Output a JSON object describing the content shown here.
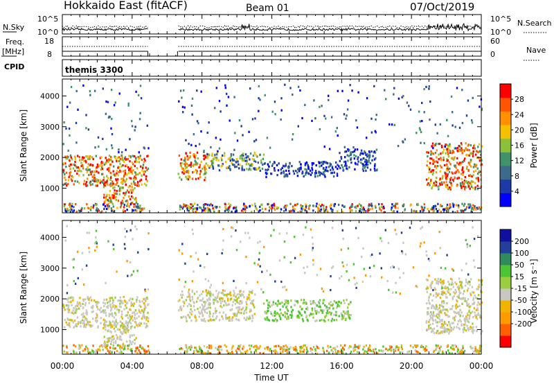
{
  "header": {
    "station": "Hokkaido East (fitACF)",
    "beam": "Beam 01",
    "date": "07/Oct/2019"
  },
  "noise_panel": {
    "left_label": "N.Sky",
    "right_label": "N.Search",
    "left_ticks": [
      "10^5",
      "10^0"
    ],
    "right_ticks": [
      "10^5",
      "10^0"
    ]
  },
  "freq_panel": {
    "left_label_1": "Freq.",
    "left_label_2": "[MHz]",
    "left_ticks": [
      "18",
      "8"
    ],
    "right_label": "Nave",
    "right_ticks": [
      "60",
      "0"
    ]
  },
  "cpid_panel": {
    "label": "CPID",
    "program": "themis 3300"
  },
  "chart_data": [
    {
      "type": "heatmap",
      "name": "power-panel",
      "ylabel": "Slant Range [km]",
      "yticks": [
        "4000",
        "3000",
        "2000",
        "1000"
      ],
      "ylim": [
        200,
        4550
      ],
      "xlim_hours": [
        0,
        24
      ],
      "colorbar": {
        "label": "Power [dB]",
        "range": [
          0,
          32
        ],
        "ticks": [
          "28",
          "24",
          "20",
          "16",
          "12",
          "8",
          "4"
        ],
        "colors": [
          "#0000ff",
          "#1d3aa8",
          "#3c6a8a",
          "#41926a",
          "#8cbf3a",
          "#f5c000",
          "#ff9000",
          "#ff5500",
          "#ff0000"
        ]
      },
      "regions": [
        {
          "t0": 0.0,
          "t1": 4.9,
          "r0": 1100,
          "r1": 2100,
          "level": "high"
        },
        {
          "t0": 2.3,
          "t1": 4.2,
          "r0": 500,
          "r1": 1300,
          "level": "high"
        },
        {
          "t0": 6.6,
          "t1": 8.2,
          "r0": 1300,
          "r1": 2200,
          "level": "high"
        },
        {
          "t0": 8.2,
          "t1": 11.5,
          "r0": 1600,
          "r1": 2200,
          "level": "mid"
        },
        {
          "t0": 11.5,
          "t1": 15.8,
          "r0": 1400,
          "r1": 1900,
          "level": "low"
        },
        {
          "t0": 15.8,
          "t1": 18.0,
          "r0": 1600,
          "r1": 2300,
          "level": "low"
        },
        {
          "t0": 20.8,
          "t1": 24.0,
          "r0": 1000,
          "r1": 2500,
          "level": "high"
        }
      ]
    },
    {
      "type": "heatmap",
      "name": "velocity-panel",
      "ylabel": "Slant Range [km]",
      "xlabel": "Time UT",
      "yticks": [
        "4000",
        "3000",
        "2000",
        "1000"
      ],
      "ylim": [
        200,
        4550
      ],
      "xticks": [
        "00:00",
        "04:00",
        "08:00",
        "12:00",
        "16:00",
        "20:00",
        "00:00"
      ],
      "xlim_hours": [
        0,
        24
      ],
      "colorbar": {
        "label": "Velocity [m s⁻¹]",
        "range": [
          -250,
          250
        ],
        "ticks": [
          "200",
          "100",
          "50",
          "15",
          "-15",
          "-50",
          "-100",
          "-200"
        ],
        "colors": [
          "#ff0000",
          "#ff6000",
          "#ff9a00",
          "#f0b300",
          "#c8c8c0",
          "#9acd40",
          "#4cc434",
          "#2f8a5e",
          "#22409a",
          "#1010a0"
        ]
      },
      "regions": [
        {
          "t0": 0.0,
          "t1": 4.9,
          "r0": 1100,
          "r1": 2100,
          "level": "ground"
        },
        {
          "t0": 2.3,
          "t1": 4.2,
          "r0": 500,
          "r1": 1300,
          "level": "ground"
        },
        {
          "t0": 6.6,
          "t1": 11.0,
          "r0": 1300,
          "r1": 2300,
          "level": "ground"
        },
        {
          "t0": 11.5,
          "t1": 16.5,
          "r0": 1300,
          "r1": 2000,
          "level": "pos"
        },
        {
          "t0": 20.8,
          "t1": 24.0,
          "r0": 900,
          "r1": 2700,
          "level": "ground"
        }
      ]
    }
  ]
}
